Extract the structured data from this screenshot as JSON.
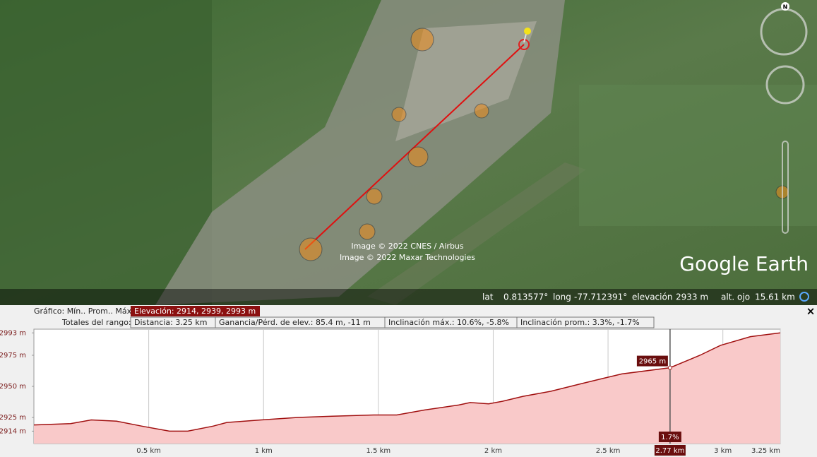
{
  "map": {
    "compass": "N",
    "attribution": [
      "Image © 2022 CNES / Airbus",
      "Image © 2022 Maxar Technologies"
    ],
    "logo": "Google Earth"
  },
  "status": {
    "lat_label": "lat",
    "lat": "0.813577°",
    "long_label": "long",
    "long": "-77.712391°",
    "elev_label": "elevación",
    "elev": "2933 m",
    "eye_label": "alt. ojo",
    "eye": "15.61 km"
  },
  "profile_panel": {
    "summary_label": "Gráfico: Mín.. Prom.. Máx.",
    "elevation": "Elevación: 2914, 2939, 2993 m",
    "range_label": "Totales del rango:",
    "range_stats": [
      "Distancia: 3.25 km",
      "Ganancia/Pérd. de elev.: 85.4 m, -11 m",
      "Inclinación máx.: 10.6%, -5.8%",
      "Inclinación prom.: 3.3%, -1.7%"
    ],
    "close": "×"
  },
  "chart_data": {
    "type": "area",
    "color": "#a01010",
    "fill": "#f9c9c9",
    "x": [
      0,
      0.16,
      0.25,
      0.36,
      0.47,
      0.59,
      0.67,
      0.78,
      0.84,
      0.99,
      1.15,
      1.3,
      1.48,
      1.58,
      1.7,
      1.85,
      1.9,
      1.98,
      2.04,
      2.13,
      2.25,
      2.38,
      2.47,
      2.56,
      2.77,
      2.9,
      2.99,
      3.12,
      3.25
    ],
    "values": [
      2919,
      2920,
      2923,
      2922,
      2918,
      2914,
      2914,
      2918,
      2921,
      2923,
      2925,
      2926,
      2927,
      2927,
      2931,
      2935,
      2937,
      2936,
      2938,
      2942,
      2946,
      2952,
      2956,
      2960,
      2965,
      2975,
      2983,
      2990,
      2993
    ],
    "xlim": [
      0,
      3.25
    ],
    "ylim": [
      2904,
      2996
    ],
    "xticks": [
      {
        "value": 0.5,
        "label": "0.5 km"
      },
      {
        "value": 1,
        "label": "1 km"
      },
      {
        "value": 1.5,
        "label": "1.5 km"
      },
      {
        "value": 2,
        "label": "2 km"
      },
      {
        "value": 2.5,
        "label": "2.5 km"
      },
      {
        "value": 3,
        "label": "3 km"
      },
      {
        "value": 3.25,
        "label": "3.25 km"
      }
    ],
    "yticks": [
      {
        "value": 2914,
        "label": "2914 m"
      },
      {
        "value": 2925,
        "label": "2925 m"
      },
      {
        "value": 2950,
        "label": "2950 m"
      },
      {
        "value": 2975,
        "label": "2975 m"
      },
      {
        "value": 2993,
        "label": "2993 m"
      }
    ],
    "cursor": {
      "x": {
        "value": 2.77,
        "label": "2.77 km"
      },
      "elevation": {
        "value": 2965,
        "label": "2965 m"
      },
      "slope": {
        "value": 1.7,
        "label": "1.7%"
      }
    }
  }
}
